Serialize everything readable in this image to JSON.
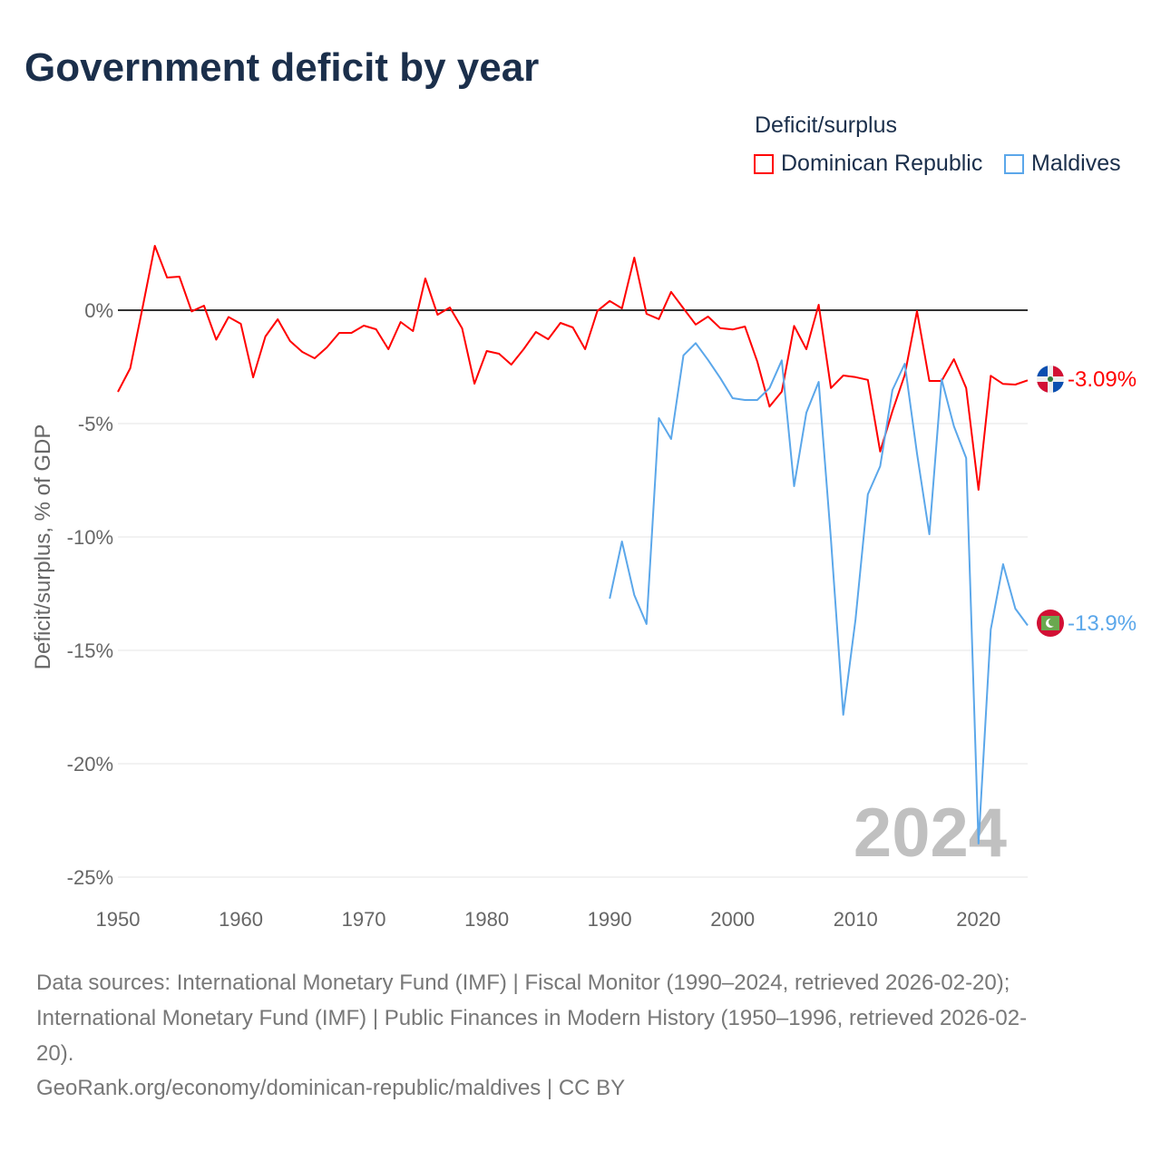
{
  "title": "Government deficit by year",
  "legend": {
    "title": "Deficit/surplus",
    "items": [
      {
        "label": "Dominican Republic",
        "color": "#ff0000"
      },
      {
        "label": "Maldives",
        "color": "#5ba7ea"
      }
    ]
  },
  "watermark_year": "2024",
  "end_labels": {
    "dominican_republic": "-3.09%",
    "maldives": "-13.9%"
  },
  "footer": {
    "line1": "Data sources: International Monetary Fund (IMF) | Fiscal Monitor (1990–2024, retrieved 2026-02-20);",
    "line2": "International Monetary Fund (IMF) | Public Finances in Modern History (1950–1996, retrieved 2026-02-",
    "line3": "20).",
    "line4": "GeoRank.org/economy/dominican-republic/maldives | CC BY"
  },
  "chart_data": {
    "type": "line",
    "title": "Government deficit by year",
    "xlabel": "",
    "ylabel": "Deficit/surplus, % of GDP",
    "xlim": [
      1950,
      2024
    ],
    "ylim": [
      -25,
      3
    ],
    "xticks": [
      1950,
      1960,
      1970,
      1980,
      1990,
      2000,
      2010,
      2020
    ],
    "xtick_labels": [
      "1950",
      "1960",
      "1970",
      "1980",
      "1990",
      "2000",
      "2010",
      "2020"
    ],
    "yticks": [
      0,
      -5,
      -10,
      -15,
      -20,
      -25
    ],
    "ytick_labels": [
      "0%",
      "-5%",
      "-10%",
      "-15%",
      "-20%",
      "-25%"
    ],
    "grid": true,
    "legend_position": "top-right",
    "series": [
      {
        "name": "Dominican Republic",
        "color": "#ff0000",
        "start_year": 1950,
        "values": [
          -3.6,
          -2.56,
          0.1,
          2.84,
          1.44,
          1.48,
          -0.05,
          0.2,
          -1.3,
          -0.3,
          -0.6,
          -2.96,
          -1.16,
          -0.4,
          -1.36,
          -1.84,
          -2.12,
          -1.64,
          -1.0,
          -1.0,
          -0.68,
          -0.84,
          -1.72,
          -0.52,
          -0.92,
          1.4,
          -0.2,
          0.12,
          -0.8,
          -3.24,
          -1.8,
          -1.92,
          -2.4,
          -1.72,
          -0.96,
          -1.28,
          -0.56,
          -0.76,
          -1.72,
          -0.03,
          0.41,
          0.08,
          2.32,
          -0.16,
          -0.39,
          0.81,
          0.08,
          -0.63,
          -0.28,
          -0.79,
          -0.85,
          -0.72,
          -2.25,
          -4.25,
          -3.59,
          -0.69,
          -1.72,
          0.24,
          -3.43,
          -2.88,
          -2.95,
          -3.07,
          -6.23,
          -4.45,
          -2.85,
          -0.04,
          -3.12,
          -3.12,
          -2.16,
          -3.43,
          -7.92,
          -2.89,
          -3.25,
          -3.28,
          -3.09
        ]
      },
      {
        "name": "Maldives",
        "color": "#5ba7ea",
        "start_year": 1990,
        "values": [
          -12.72,
          -10.2,
          -12.56,
          -13.84,
          -4.76,
          -5.68,
          -1.99,
          -1.45,
          -2.19,
          -2.99,
          -3.88,
          -3.96,
          -3.96,
          -3.43,
          -2.21,
          -7.76,
          -4.52,
          -3.16,
          -10.1,
          -17.84,
          -13.64,
          -8.12,
          -6.88,
          -3.52,
          -2.36,
          -6.32,
          -9.88,
          -3.04,
          -5.12,
          -6.52,
          -23.52,
          -14.08,
          -11.2,
          -13.16,
          -13.9
        ]
      }
    ]
  }
}
